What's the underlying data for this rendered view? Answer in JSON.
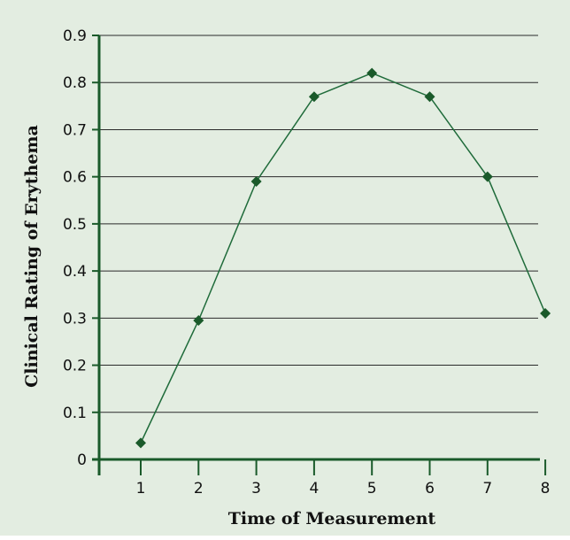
{
  "colors": {
    "background": "#e3ede1",
    "axis": "#1a5a2a",
    "line": "#1f6b3a",
    "marker": "#1a5a2a",
    "grid": "#2a2a2a"
  },
  "chart_data": {
    "type": "line",
    "xlabel": "Time of Measurement",
    "ylabel": "Clinical Rating of Erythema",
    "x": [
      1,
      2,
      3,
      4,
      5,
      6,
      7,
      8
    ],
    "series": [
      {
        "values": [
          0.035,
          0.295,
          0.59,
          0.77,
          0.82,
          0.77,
          0.6,
          0.31
        ]
      }
    ],
    "xlim": [
      0.3,
      8
    ],
    "ylim": [
      0,
      0.9
    ],
    "xticks": [
      "1",
      "2",
      "3",
      "4",
      "5",
      "6",
      "7",
      "8"
    ],
    "yticks": [
      "0",
      "0.1",
      "0.2",
      "0.3",
      "0.4",
      "0.5",
      "0.6",
      "0.7",
      "0.8",
      "0.9"
    ],
    "grid": "horizontal",
    "marker": "diamond"
  }
}
